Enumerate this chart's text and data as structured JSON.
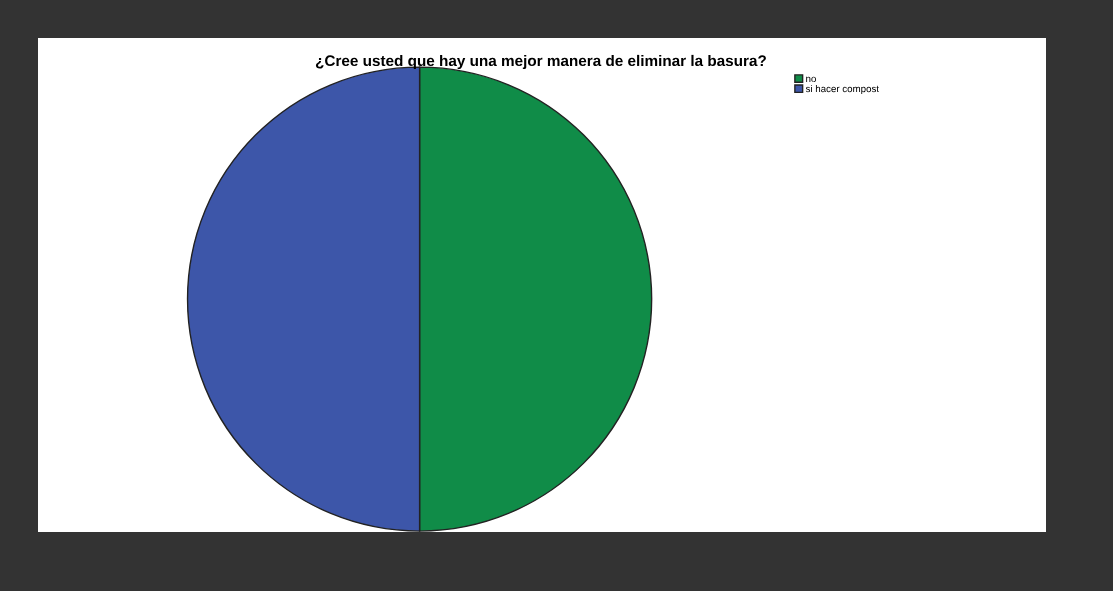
{
  "chart_data": {
    "type": "pie",
    "title": "¿Cree usted que hay una mejor manera de eliminar la basura?",
    "categories": [
      "no",
      "si hacer compost"
    ],
    "values": [
      50,
      50
    ],
    "colors": [
      "#108c48",
      "#3d56a9"
    ],
    "legend": "top right"
  }
}
